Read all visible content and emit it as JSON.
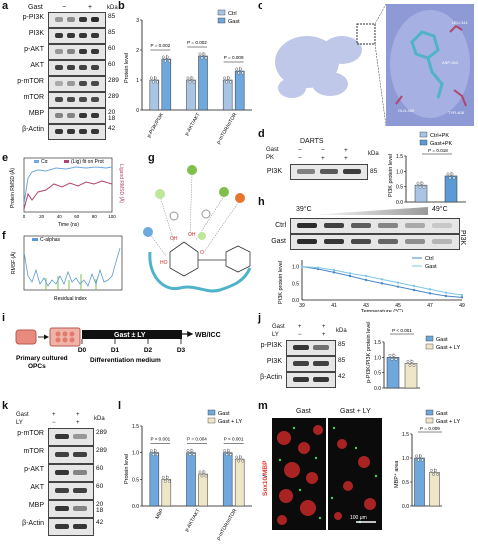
{
  "colors": {
    "ctrl": "#a9c4e4",
    "gast": "#6fa8dc",
    "gast_ly": "#efe6c8",
    "pk": "#5b9bd5",
    "line_ctrl": "#4a86c5",
    "line_gast": "#7fc6e8",
    "cyan": "#4fb3c9",
    "pink": "#b0456e"
  },
  "panels": [
    "a",
    "b",
    "c",
    "d",
    "e",
    "f",
    "g",
    "h",
    "i",
    "j",
    "k",
    "l",
    "m"
  ],
  "panel_a": {
    "header_gast": "Gast",
    "minus": "−",
    "plus": "+",
    "kda": "kDa",
    "rows": [
      {
        "label": "p-PI3K",
        "kda": "85"
      },
      {
        "label": "PI3K",
        "kda": "85"
      },
      {
        "label": "p-AKT",
        "kda": "60"
      },
      {
        "label": "AKT",
        "kda": "60"
      },
      {
        "label": "p-mTOR",
        "kda": "289"
      },
      {
        "label": "mTOR",
        "kda": "289"
      },
      {
        "label": "MBP",
        "kda": "20\n18"
      },
      {
        "label": "β-Actin",
        "kda": "42"
      }
    ]
  },
  "panel_b": {
    "legend": [
      "Ctrl",
      "Gast"
    ],
    "ylabel": "Protein level",
    "yticks": [
      "0",
      "1",
      "2",
      "3"
    ],
    "ylim": [
      0,
      3
    ],
    "pvals": [
      "P = 0.002",
      "P = 0.002",
      "P = 0.009"
    ]
  },
  "panel_d": {
    "legend": [
      "Cα",
      "(Lig) fit on Prot"
    ],
    "ylabel_left": "Protein RMSD (Å)",
    "ylabel_right": "Ligand RMSD (Å)",
    "xlabel": "Time (ns)",
    "xticks": [
      "0",
      "20",
      "40",
      "60",
      "80",
      "100"
    ]
  },
  "panel_e": {
    "legend": "C-alphas",
    "ylabel": "RMSF (Å)",
    "xlabel": "Residual index"
  },
  "panel_g": {
    "title": "DARTS",
    "gast_label": "Gast",
    "pk_label": "PK",
    "kda": "kDa",
    "gast_signs": [
      "−",
      "−",
      "+"
    ],
    "pk_signs": [
      "−",
      "+",
      "+"
    ],
    "row": "PI3K",
    "row_kda": "85",
    "legend": [
      "Ctrl+PK",
      "Gast+PK"
    ],
    "ylabel": "PI3K protein level",
    "pval": "P = 0.018",
    "yticks": [
      "0.0",
      "0.5",
      "1.0",
      "1.5"
    ]
  },
  "panel_h": {
    "temp_low": "39°C",
    "temp_high": "49°C",
    "rows": [
      "Ctrl",
      "Gast"
    ],
    "side": "PI3K",
    "legend": [
      "Ctrl",
      "Gast"
    ],
    "ylabel": "PI3K protein level",
    "xlabel": "Temperature (°C)",
    "xticks": [
      "39",
      "41",
      "43",
      "45",
      "47",
      "49"
    ],
    "yticks": [
      "0.0",
      "0.5",
      "1.0"
    ]
  },
  "panel_i": {
    "cells": "Primary cultured\nOPCs",
    "treat": "Gast ± LY",
    "days": [
      "D0",
      "D1",
      "D2",
      "D3"
    ],
    "medium": "Differentiation medium",
    "readout": "WB/ICC"
  },
  "panel_j": {
    "gast": "Gast",
    "ly": "LY",
    "kda": "kDa",
    "rows": [
      {
        "label": "p-PI3K",
        "kda": "85"
      },
      {
        "label": "PI3K",
        "kda": "85"
      },
      {
        "label": "β-Actin",
        "kda": "42"
      }
    ],
    "legend": [
      "Gast",
      "Gast + LY"
    ],
    "ylabel": "p-PI3K/PI3K protein level",
    "pval": "P < 0.001",
    "yticks": [
      "0.0",
      "0.5",
      "1.0",
      "1.5"
    ]
  },
  "panel_k": {
    "gast": "Gast",
    "ly": "LY",
    "kda": "kDa",
    "rows": [
      {
        "label": "p-mTOR",
        "kda": "289"
      },
      {
        "label": "mTOR",
        "kda": "289"
      },
      {
        "label": "p-AKT",
        "kda": "60"
      },
      {
        "label": "AKT",
        "kda": "60"
      },
      {
        "label": "MBP",
        "kda": "20\n18"
      },
      {
        "label": "β-Actin",
        "kda": "42"
      }
    ]
  },
  "panel_l": {
    "legend": [
      "Gast",
      "Gast + LY"
    ],
    "ylabel": "Protein level",
    "pvals": [
      "P < 0.001",
      "P = 0.004",
      "P < 0.001"
    ],
    "yticks": [
      "0.0",
      "0.5",
      "1.0",
      "1.5"
    ]
  },
  "panel_m": {
    "img_titles": [
      "Gast",
      "Gast + LY"
    ],
    "side_mbp": "MBP",
    "side_slash": "/",
    "side_olig": "Sox10",
    "scale": "100 μm",
    "legend": [
      "Gast",
      "Gast + LY"
    ],
    "ylabel": "MBP⁺ area",
    "pval": "P = 0.009",
    "yticks": [
      "0.0",
      "0.5",
      "1.0",
      "1.5"
    ]
  },
  "chart_data": [
    {
      "type": "bar",
      "panel": "b",
      "categories": [
        "p-PI3K/PI3K",
        "p-AKT/AKT",
        "p-mTOR/mTOR"
      ],
      "series": [
        {
          "name": "Ctrl",
          "values": [
            1.0,
            1.0,
            1.0
          ]
        },
        {
          "name": "Gast",
          "values": [
            1.7,
            1.8,
            1.3
          ]
        }
      ],
      "ylabel": "Protein level",
      "ylim": [
        0,
        3
      ]
    },
    {
      "type": "bar",
      "panel": "g",
      "categories": [
        "Ctrl+PK",
        "Gast+PK"
      ],
      "values": [
        0.55,
        0.85
      ],
      "ylabel": "PI3K protein level",
      "ylim": [
        0,
        1.5
      ]
    },
    {
      "type": "line",
      "panel": "h",
      "x": [
        39,
        40,
        41,
        42,
        43,
        44,
        45,
        46,
        47,
        48,
        49
      ],
      "series": [
        {
          "name": "Ctrl",
          "values": [
            1.0,
            0.93,
            0.83,
            0.72,
            0.6,
            0.5,
            0.4,
            0.3,
            0.2,
            0.12,
            0.08
          ]
        },
        {
          "name": "Gast",
          "values": [
            1.0,
            0.97,
            0.9,
            0.8,
            0.72,
            0.62,
            0.52,
            0.42,
            0.32,
            0.22,
            0.15
          ]
        }
      ],
      "xlabel": "Temperature (°C)",
      "ylabel": "PI3K protein level",
      "ylim": [
        0,
        1.2
      ]
    },
    {
      "type": "bar",
      "panel": "j",
      "categories": [
        "Gast",
        "Gast + LY"
      ],
      "values": [
        1.0,
        0.8
      ],
      "ylabel": "p-PI3K/PI3K protein level",
      "ylim": [
        0,
        1.5
      ]
    },
    {
      "type": "bar",
      "panel": "l",
      "categories": [
        "MBP",
        "p-AKT/AKT",
        "p-mTOR/mTOR"
      ],
      "series": [
        {
          "name": "Gast",
          "values": [
            1.0,
            1.0,
            1.0
          ]
        },
        {
          "name": "Gast + LY",
          "values": [
            0.5,
            0.6,
            0.88
          ]
        }
      ],
      "ylabel": "Protein level",
      "ylim": [
        0,
        1.5
      ]
    },
    {
      "type": "bar",
      "panel": "m",
      "categories": [
        "Gast",
        "Gast + LY"
      ],
      "values": [
        1.0,
        0.7
      ],
      "ylabel": "MBP⁺ area",
      "ylim": [
        0,
        1.5
      ]
    }
  ]
}
